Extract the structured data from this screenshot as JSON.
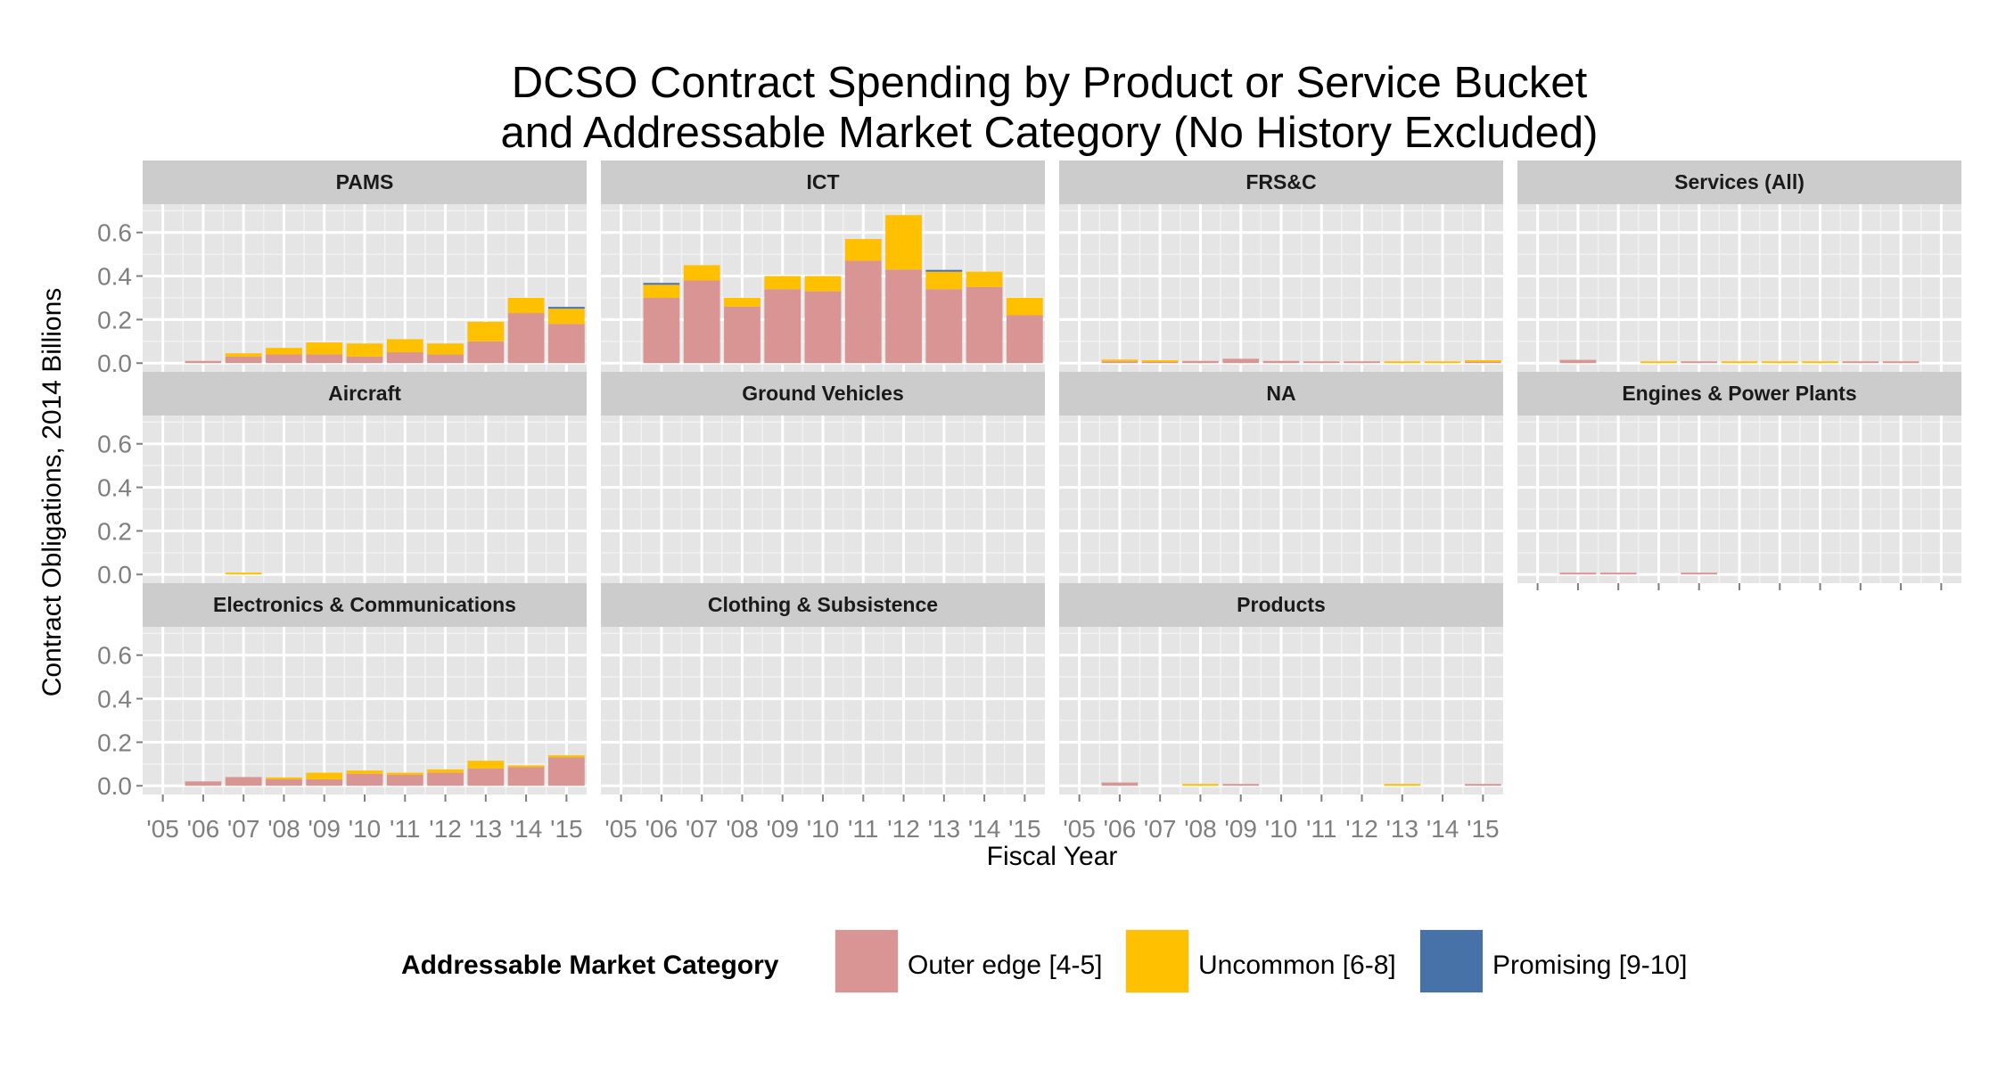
{
  "chart_data": {
    "type": "bar",
    "stacked": true,
    "faceted": true,
    "title": "DCSO Contract Spending by Product or Service Bucket",
    "subtitle": "and Addressable Market Category (No History Excluded)",
    "xlabel": "Fiscal Year",
    "ylabel": "Contract Obligations, 2014 Billions",
    "ylim": [
      -0.04,
      0.73
    ],
    "yticks": [
      0.0,
      0.2,
      0.4,
      0.6
    ],
    "ytick_labels": [
      "0.0",
      "0.2",
      "0.4",
      "0.6"
    ],
    "xticks": [
      2005,
      2006,
      2007,
      2008,
      2009,
      2010,
      2011,
      2012,
      2013,
      2014,
      2015
    ],
    "xtick_labels": [
      "'05",
      "'06",
      "'07",
      "'08",
      "'09",
      "'10",
      "'11",
      "'12",
      "'13",
      "'14",
      "'15"
    ],
    "grid": true,
    "legend": {
      "title": "Addressable Market Category",
      "position": "bottom",
      "entries": [
        {
          "name": "Outer edge [4-5]",
          "color": "#d99594"
        },
        {
          "name": "Uncommon [6-8]",
          "color": "#ffc000"
        },
        {
          "name": "Promising [9-10]",
          "color": "#4672a8"
        }
      ]
    },
    "series_order": [
      "Outer edge [4-5]",
      "Uncommon [6-8]",
      "Promising [9-10]"
    ],
    "panels": [
      {
        "name": "PAMS",
        "years": [
          2006,
          2007,
          2008,
          2009,
          2010,
          2011,
          2012,
          2013,
          2014,
          2015
        ],
        "stacks": [
          [
            0.01,
            0.0,
            0.0
          ],
          [
            0.03,
            0.015,
            0.0
          ],
          [
            0.04,
            0.03,
            0.0
          ],
          [
            0.04,
            0.055,
            0.0
          ],
          [
            0.03,
            0.06,
            0.0
          ],
          [
            0.05,
            0.06,
            0.0
          ],
          [
            0.04,
            0.05,
            0.0
          ],
          [
            0.1,
            0.09,
            0.0
          ],
          [
            0.23,
            0.07,
            0.0
          ],
          [
            0.18,
            0.07,
            0.005
          ]
        ]
      },
      {
        "name": "ICT",
        "years": [
          2006,
          2007,
          2008,
          2009,
          2010,
          2011,
          2012,
          2013,
          2014,
          2015
        ],
        "stacks": [
          [
            0.3,
            0.06,
            0.005
          ],
          [
            0.38,
            0.07,
            0.0
          ],
          [
            0.26,
            0.04,
            0.0
          ],
          [
            0.34,
            0.06,
            0.0
          ],
          [
            0.33,
            0.07,
            0.0
          ],
          [
            0.47,
            0.1,
            0.0
          ],
          [
            0.43,
            0.25,
            0.0
          ],
          [
            0.34,
            0.08,
            0.005
          ],
          [
            0.35,
            0.07,
            0.0
          ],
          [
            0.22,
            0.08,
            0.0
          ]
        ]
      },
      {
        "name": "FRS&C",
        "years": [
          2006,
          2007,
          2008,
          2009,
          2010,
          2011,
          2012,
          2013,
          2014,
          2015
        ],
        "stacks": [
          [
            0.008,
            0.006,
            0.0
          ],
          [
            0.005,
            0.004,
            0.0
          ],
          [
            0.01,
            0.0,
            0.0
          ],
          [
            0.02,
            0.0,
            0.0
          ],
          [
            0.01,
            0.0,
            0.0
          ],
          [
            0.005,
            0.0,
            0.0
          ],
          [
            0.005,
            0.0,
            0.0
          ],
          [
            0.0,
            0.004,
            0.0
          ],
          [
            0.0,
            0.004,
            0.0
          ],
          [
            0.005,
            0.004,
            0.0
          ]
        ]
      },
      {
        "name": "Services (All)",
        "years": [
          2006,
          2008,
          2009,
          2010,
          2011,
          2012,
          2013,
          2014
        ],
        "stacks": [
          [
            0.015,
            0.0,
            0.0
          ],
          [
            0.0,
            0.004,
            0.0
          ],
          [
            0.004,
            0.0,
            0.0
          ],
          [
            0.0,
            0.004,
            0.0
          ],
          [
            0.0,
            0.004,
            0.0
          ],
          [
            0.0,
            0.004,
            0.0
          ],
          [
            0.004,
            0.0,
            0.0
          ],
          [
            0.006,
            0.0,
            0.0
          ]
        ]
      },
      {
        "name": "Aircraft",
        "years": [
          2007
        ],
        "stacks": [
          [
            0.0,
            0.006,
            0.0
          ]
        ]
      },
      {
        "name": "Ground Vehicles",
        "years": [],
        "stacks": []
      },
      {
        "name": "NA",
        "years": [],
        "stacks": []
      },
      {
        "name": "Engines & Power Plants",
        "years": [
          2006,
          2007,
          2009
        ],
        "stacks": [
          [
            0.004,
            0.0,
            0.0
          ],
          [
            0.004,
            0.0,
            0.0
          ],
          [
            0.004,
            0.0,
            0.0
          ]
        ]
      },
      {
        "name": "Electronics & Communications",
        "years": [
          2006,
          2007,
          2008,
          2009,
          2010,
          2011,
          2012,
          2013,
          2014,
          2015
        ],
        "stacks": [
          [
            0.02,
            0.0,
            0.0
          ],
          [
            0.04,
            0.0,
            0.0
          ],
          [
            0.03,
            0.005,
            0.0
          ],
          [
            0.03,
            0.03,
            0.0
          ],
          [
            0.055,
            0.015,
            0.0
          ],
          [
            0.05,
            0.01,
            0.0
          ],
          [
            0.06,
            0.015,
            0.0
          ],
          [
            0.08,
            0.035,
            0.0
          ],
          [
            0.085,
            0.005,
            0.0
          ],
          [
            0.13,
            0.01,
            0.0
          ]
        ]
      },
      {
        "name": "Clothing & Subsistence",
        "years": [],
        "stacks": []
      },
      {
        "name": "Products",
        "years": [
          2006,
          2008,
          2009,
          2013,
          2015
        ],
        "stacks": [
          [
            0.015,
            0.0,
            0.0
          ],
          [
            0.0,
            0.006,
            0.0
          ],
          [
            0.004,
            0.0,
            0.0
          ],
          [
            0.0,
            0.005,
            0.0
          ],
          [
            0.004,
            0.0,
            0.0
          ]
        ]
      }
    ]
  }
}
